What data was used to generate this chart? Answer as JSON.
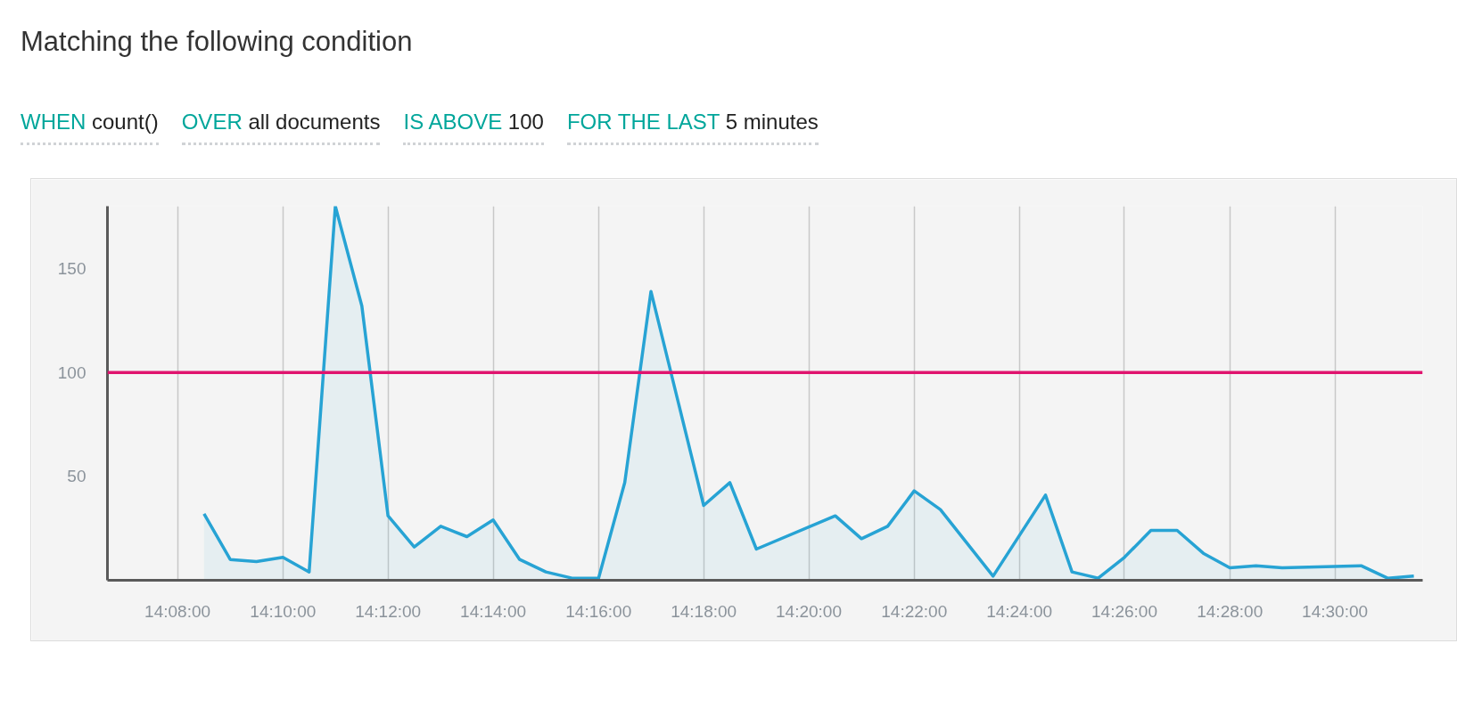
{
  "chart_data": {
    "type": "area",
    "title": "Matching the following condition",
    "annotations": [
      "WHEN",
      "count()",
      "OVER",
      "all documents",
      "IS ABOVE",
      "100",
      "FOR THE LAST",
      "5 minutes"
    ],
    "x": [
      14.1417,
      14.15,
      14.1583,
      14.1667,
      14.175,
      14.1833,
      14.1917,
      14.2,
      14.2083,
      14.2167,
      14.225,
      14.2333,
      14.2417,
      14.25,
      14.2583,
      14.2667,
      14.275,
      14.2833,
      14.3,
      14.3083,
      14.3167,
      14.3417,
      14.35,
      14.3583,
      14.3667,
      14.375,
      14.3917,
      14.4083,
      14.4167,
      14.425,
      14.4333,
      14.4417,
      14.45,
      14.4583,
      14.4667,
      14.475,
      14.4833,
      14.5083,
      14.5167,
      14.525
    ],
    "series": [
      {
        "color": "#27a3d4",
        "values": [
          32,
          10,
          9,
          11,
          4,
          180,
          132,
          31,
          16,
          26,
          21,
          29,
          10,
          4,
          1,
          1,
          47,
          139,
          36,
          47,
          15,
          31,
          20,
          26,
          43,
          34,
          2,
          41,
          4,
          1,
          11,
          24,
          24,
          13,
          6,
          7,
          6,
          7,
          1,
          2
        ]
      }
    ],
    "xlim": [
      14.1111,
      14.5278
    ],
    "ylim": [
      0,
      180
    ],
    "xticks": [
      {
        "value": 14.1333,
        "label": "14:08:00"
      },
      {
        "value": 14.1667,
        "label": "14:10:00"
      },
      {
        "value": 14.2,
        "label": "14:12:00"
      },
      {
        "value": 14.2333,
        "label": "14:14:00"
      },
      {
        "value": 14.2667,
        "label": "14:16:00"
      },
      {
        "value": 14.3,
        "label": "14:18:00"
      },
      {
        "value": 14.3333,
        "label": "14:20:00"
      },
      {
        "value": 14.3667,
        "label": "14:22:00"
      },
      {
        "value": 14.4,
        "label": "14:24:00"
      },
      {
        "value": 14.4333,
        "label": "14:26:00"
      },
      {
        "value": 14.4667,
        "label": "14:28:00"
      },
      {
        "value": 14.5,
        "label": "14:30:00"
      }
    ],
    "yticks": [
      50,
      100,
      150
    ],
    "ref_lines": [
      {
        "axis": "y",
        "value": 100,
        "color": "#e0146e"
      }
    ],
    "grid": "x"
  }
}
